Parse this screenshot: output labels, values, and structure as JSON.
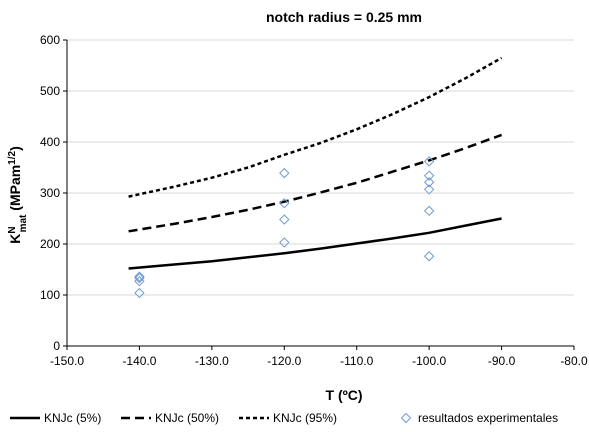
{
  "chart_data": {
    "type": "line",
    "title": "notch radius = 0.25 mm",
    "xlabel": "T (ºC)",
    "ylabel": {
      "base": "K",
      "sup": "N",
      "sub": "mat",
      "rest": " (MPam",
      "rest_sup": "1/2",
      "rest_end": ")"
    },
    "xlim": [
      -150,
      -80
    ],
    "ylim": [
      0,
      600
    ],
    "xticks": [
      -150,
      -140,
      -130,
      -120,
      -110,
      -100,
      -90,
      -80
    ],
    "xtick_labels": [
      "-150.0",
      "-140.0",
      "-130.0",
      "-120.0",
      "-110.0",
      "-100.0",
      "-90.0",
      "-80.0"
    ],
    "yticks": [
      0,
      100,
      200,
      300,
      400,
      500,
      600
    ],
    "ytick_labels": [
      "0",
      "100",
      "200",
      "300",
      "400",
      "500",
      "600"
    ],
    "grid": "horizontal",
    "legend_position": "bottom",
    "series": [
      {
        "name": "KNJc (5%)",
        "style": "solid",
        "color": "#000000",
        "x": [
          -141.5,
          -135,
          -130,
          -125,
          -120,
          -115,
          -110,
          -105,
          -100,
          -95,
          -90
        ],
        "y": [
          152,
          160,
          166,
          174,
          182,
          191,
          201,
          211,
          222,
          236,
          250
        ]
      },
      {
        "name": "KNJc (50%)",
        "style": "dashed",
        "color": "#000000",
        "x": [
          -141.5,
          -135,
          -130,
          -125,
          -120,
          -115,
          -110,
          -105,
          -100,
          -95,
          -90
        ],
        "y": [
          225,
          240,
          253,
          267,
          283,
          301,
          320,
          342,
          364,
          388,
          414
        ]
      },
      {
        "name": "KNJc (95%)",
        "style": "dotted",
        "color": "#000000",
        "x": [
          -141.5,
          -135,
          -130,
          -125,
          -120,
          -115,
          -110,
          -105,
          -100,
          -95,
          -90
        ],
        "y": [
          293,
          313,
          330,
          350,
          375,
          398,
          425,
          455,
          488,
          525,
          565
        ]
      },
      {
        "name": "resultados experimentales",
        "style": "markers",
        "marker": "diamond",
        "color": "#6f9bd1",
        "x": [
          -140,
          -140,
          -140,
          -140,
          -120,
          -120,
          -120,
          -120,
          -100,
          -100,
          -100,
          -100,
          -100,
          -100
        ],
        "y": [
          136,
          133,
          127,
          104,
          339,
          280,
          248,
          203,
          362,
          334,
          321,
          307,
          265,
          176
        ]
      }
    ]
  }
}
